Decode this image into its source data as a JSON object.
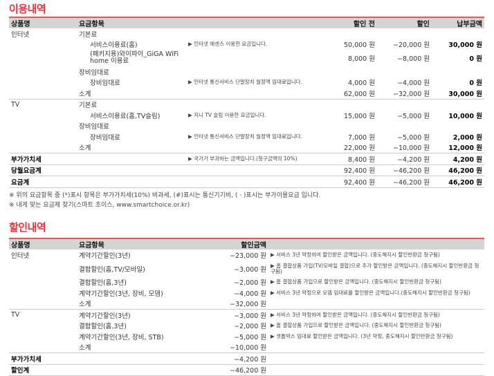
{
  "usage": {
    "title": "이용내역",
    "headers": [
      "상품명",
      "요금항목",
      "",
      "할인 전",
      "할인",
      "납부금액"
    ],
    "rows": [
      {
        "product": "인터넷",
        "item": "기본료",
        "level": 0,
        "desc": "",
        "before": "",
        "discount": "",
        "pay": ""
      },
      {
        "product": "",
        "item": "서비스이용료(홈)",
        "level": 1,
        "desc": "▶ 인터넷 에센스 이용한 요금입니다.",
        "before": "50,000 원",
        "discount": "−20,000 원",
        "pay": "30,000 원"
      },
      {
        "product": "",
        "item": "(패키지용)와이파이_GiGA WiFi home 이용료",
        "level": 1,
        "wrap": true,
        "desc": "",
        "before": "8,000 원",
        "discount": "−8,000 원",
        "pay": "0 원"
      },
      {
        "product": "",
        "item": "장비임대료",
        "level": 0,
        "desc": "",
        "before": "",
        "discount": "",
        "pay": ""
      },
      {
        "product": "",
        "item": "장비임대료",
        "level": 1,
        "desc": "▶ 인터넷 통신서비스 단말장치 월정액 임대료입니다.",
        "before": "4,000 원",
        "discount": "−4,000 원",
        "pay": "0 원"
      },
      {
        "product": "",
        "item": "소계",
        "level": 0,
        "desc": "",
        "before": "62,000 원",
        "discount": "−32,000 원",
        "pay": "30,000 원",
        "sep": true
      },
      {
        "product": "TV",
        "item": "기본료",
        "level": 0,
        "desc": "",
        "before": "",
        "discount": "",
        "pay": ""
      },
      {
        "product": "",
        "item": "서비스이용료(홈,TV슬림)",
        "level": 1,
        "desc": "▶ 지니 TV 슬림 이용한 요금입니다.",
        "before": "15,000 원",
        "discount": "−5,000 원",
        "pay": "10,000 원"
      },
      {
        "product": "",
        "item": "장비임대료",
        "level": 0,
        "desc": "",
        "before": "",
        "discount": "",
        "pay": ""
      },
      {
        "product": "",
        "item": "장비임대료",
        "level": 1,
        "desc": "▶ 인터넷 통신서비스 단말장치 월정액 임대료입니다.",
        "before": "7,000 원",
        "discount": "−5,000 원",
        "pay": "2,000 원"
      },
      {
        "product": "",
        "item": "소계",
        "level": 0,
        "desc": "",
        "before": "22,000 원",
        "discount": "−10,000 원",
        "pay": "12,000 원",
        "sep": true
      },
      {
        "product": "부가가치세",
        "bold": true,
        "item": "",
        "level": 0,
        "desc": "▶ 국가가 부과하는 금액입니다.(청구금액의 10%)",
        "before": "8,400 원",
        "discount": "−4,200 원",
        "pay": "4,200 원",
        "sep": true
      },
      {
        "product": "당월요금계",
        "bold": true,
        "item": "",
        "level": 0,
        "desc": "",
        "before": "92,400 원",
        "discount": "−46,200 원",
        "pay": "46,200 원",
        "sep": true
      },
      {
        "product": "요금계",
        "bold": true,
        "item": "",
        "level": 0,
        "desc": "",
        "before": "92,400 원",
        "discount": "−46,200 원",
        "pay": "46,200 원",
        "sep": true
      }
    ],
    "notes": [
      "※ 위의 요금항목 중 (*)표시 항목은 부가가치세(10%) 비과세, (#)표시는 통신기기비, ( · )표시는 부가이용요금 입니다.",
      "※ 내게 맞는 요금제 찾기(스마트 초이스, www.smartchoice.or.kr)"
    ]
  },
  "discounts": {
    "title": "할인내역",
    "headers": [
      "상품명",
      "요금항목",
      "할인금액",
      ""
    ],
    "rows": [
      {
        "product": "인터넷",
        "item": "계약기간할인(3년)",
        "amount": "−23,000 원",
        "desc": "▶ 서비스 3년 약정하여 할인받은 금액입니다. (중도해지시 할인반환금 청구됨)"
      },
      {
        "product": "",
        "item": "결합할인(홈,TV/모바일)",
        "amount": "−3,000 원",
        "desc": "▶ 홈 결합상품 가입(TV/모바일 결합)으로 추가 할인받은 금액입니다. (중도해지시 할인반환금 청구됨)",
        "tall": true
      },
      {
        "product": "",
        "item": "결합할인(홈,3년)",
        "amount": "−2,000 원",
        "desc": "▶ 홈 결합상품 가입으로 할인받은 금액입니다. (중도해지시 할인반환금 청구됨)"
      },
      {
        "product": "",
        "item": "계약기간할인(3년, 장비, 모뎀)",
        "amount": "−4,000 원",
        "desc": "▶ 서비스 3년 약정으로 모뎀 임대료를 할인받은 금액입니다.(중도해지시 할인반환금 청구됨)"
      },
      {
        "product": "",
        "item": "소계",
        "amount": "−32,000 원",
        "desc": "",
        "sep": true
      },
      {
        "product": "TV",
        "item": "계약기간할인(3년)",
        "amount": "−3,000 원",
        "desc": "▶ 서비스 3년 약정하여 할인받은 금액입니다. (중도해지시 할인반환금 청구됨)"
      },
      {
        "product": "",
        "item": "결합할인(홈,3년)",
        "amount": "−2,000 원",
        "desc": "▶ 홈 결합상품 가입으로 할인받은 금액입니다. (중도해지시 할인반환금 청구됨)"
      },
      {
        "product": "",
        "item": "계약기간할인(3년, 장비, STB)",
        "amount": "−5,000 원",
        "desc": "▶ 셋톱박스 임대료 할인받은 금액입니다. (3년 약정, 중도해지시 할인반환금 청구됨)"
      },
      {
        "product": "",
        "item": "소계",
        "amount": "−10,000 원",
        "desc": "",
        "sep": true
      },
      {
        "product": "부가가치세",
        "bold": true,
        "item": "",
        "amount": "−4,200 원",
        "desc": "",
        "sep": true
      },
      {
        "product": "할인계",
        "bold": true,
        "item": "",
        "amount": "−46,200 원",
        "desc": "",
        "sep": true
      }
    ]
  },
  "colors": {
    "accent": "#e8333c",
    "header_bg": "#d4d4d4"
  }
}
